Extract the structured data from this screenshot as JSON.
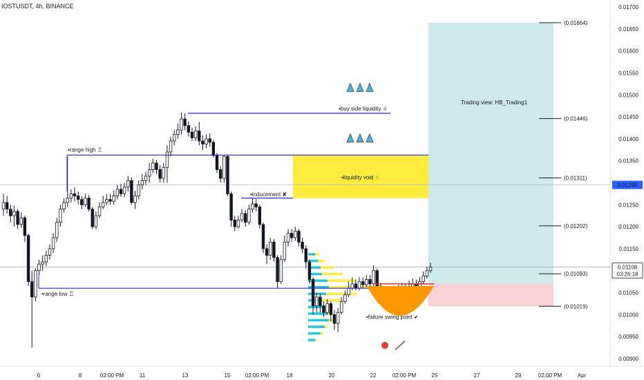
{
  "header": {
    "symbol": "IOSTUSDT, 4h, BINANCE"
  },
  "colors": {
    "up": "#ffffff",
    "down": "#131722",
    "wick": "#131722",
    "range_line": "#2626d9",
    "void": "#ffeb3b",
    "target_zone": "#b2dfdb",
    "stop_zone": "#f8c8cc",
    "cup": "#ff9800",
    "entry_line": "#d32f2f",
    "vp_up": "#26c6da",
    "vp_down": "#ffeb3b",
    "price_tag": "#2962ff"
  },
  "chart_data": {
    "type": "candlestick",
    "ylim": [
      0.009,
      0.017
    ],
    "y_ticks": [
      "0.01700",
      "0.01650",
      "0.01600",
      "0.01550",
      "0.01500",
      "0.01450",
      "0.01400",
      "0.01350",
      "0.01300",
      "0.01250",
      "0.01200",
      "0.01150",
      "0.01100",
      "0.01050",
      "0.01000",
      "0.00950",
      "0.00900"
    ],
    "x_ticks": [
      "6",
      "8",
      "02:00 PM",
      "11",
      "13",
      "15",
      "02:00 PM",
      "18",
      "20",
      "22",
      "02:00 PM",
      "25",
      "27",
      "29",
      "02:00 PM",
      "Apr"
    ],
    "current_price": "0.01108",
    "countdown": "03:26:18",
    "alt_price": "0.01295",
    "levels": [
      {
        "label": "(0.01664)",
        "value": 0.01664
      },
      {
        "label": "(0.01446)",
        "value": 0.01446
      },
      {
        "label": "(0.01311)",
        "value": 0.01311
      },
      {
        "label": "(0.01202)",
        "value": 0.01202
      },
      {
        "label": "(0.01093)",
        "value": 0.01093
      },
      {
        "label": "(0.01019)",
        "value": 0.01019
      }
    ],
    "range_high": 0.01363,
    "range_low": 0.0106,
    "buy_side_liquidity": 0.01458,
    "inducement": 0.01265,
    "void": [
      0.01265,
      0.01363
    ],
    "entry": 0.0107,
    "target": 0.01664,
    "stop": 0.01019,
    "candles": [
      [
        0.0124,
        0.01255,
        0.01275,
        0.01225
      ],
      [
        0.01255,
        0.0124,
        0.0127,
        0.0123
      ],
      [
        0.0124,
        0.01225,
        0.0125,
        0.0121
      ],
      [
        0.01225,
        0.01235,
        0.01248,
        0.012
      ],
      [
        0.01235,
        0.01205,
        0.0124,
        0.01195
      ],
      [
        0.01205,
        0.0122,
        0.01232,
        0.01198
      ],
      [
        0.0122,
        0.0118,
        0.01225,
        0.01165
      ],
      [
        0.0118,
        0.01075,
        0.01185,
        0.01065
      ],
      [
        0.01075,
        0.0104,
        0.011,
        0.00925
      ],
      [
        0.0104,
        0.011,
        0.01105,
        0.0103
      ],
      [
        0.011,
        0.01115,
        0.01125,
        0.0109
      ],
      [
        0.01115,
        0.0112,
        0.01135,
        0.011
      ],
      [
        0.0112,
        0.01135,
        0.01145,
        0.0111
      ],
      [
        0.01135,
        0.0115,
        0.0116,
        0.01125
      ],
      [
        0.0115,
        0.01175,
        0.01185,
        0.0114
      ],
      [
        0.01175,
        0.0121,
        0.0122,
        0.01165
      ],
      [
        0.0121,
        0.0124,
        0.0125,
        0.012
      ],
      [
        0.0124,
        0.01255,
        0.01265,
        0.01232
      ],
      [
        0.01255,
        0.01265,
        0.0136,
        0.01245
      ],
      [
        0.01265,
        0.01275,
        0.01285,
        0.01255
      ],
      [
        0.01275,
        0.0127,
        0.0129,
        0.01258
      ],
      [
        0.0127,
        0.01262,
        0.0128,
        0.0125
      ],
      [
        0.01262,
        0.0125,
        0.0127,
        0.0124
      ],
      [
        0.0125,
        0.01265,
        0.01275,
        0.01245
      ],
      [
        0.01265,
        0.0124,
        0.01272,
        0.01235
      ],
      [
        0.0124,
        0.012,
        0.01245,
        0.01195
      ],
      [
        0.012,
        0.01225,
        0.01235,
        0.01195
      ],
      [
        0.01225,
        0.01245,
        0.01255,
        0.0122
      ],
      [
        0.01245,
        0.01255,
        0.0127,
        0.0124
      ],
      [
        0.01255,
        0.01262,
        0.01275,
        0.01248
      ],
      [
        0.01262,
        0.01258,
        0.01275,
        0.0125
      ],
      [
        0.01258,
        0.0127,
        0.01282,
        0.0125
      ],
      [
        0.0127,
        0.01285,
        0.01295,
        0.01262
      ],
      [
        0.01285,
        0.01275,
        0.01298,
        0.01268
      ],
      [
        0.01275,
        0.0129,
        0.013,
        0.01268
      ],
      [
        0.0129,
        0.01305,
        0.01315,
        0.0128
      ],
      [
        0.01305,
        0.01255,
        0.01312,
        0.0125
      ],
      [
        0.01255,
        0.0127,
        0.01282,
        0.0124
      ],
      [
        0.0127,
        0.01295,
        0.01305,
        0.01262
      ],
      [
        0.01295,
        0.01305,
        0.0132,
        0.01285
      ],
      [
        0.01305,
        0.01315,
        0.01325,
        0.01295
      ],
      [
        0.01315,
        0.0133,
        0.01345,
        0.013
      ],
      [
        0.0133,
        0.01345,
        0.01355,
        0.01322
      ],
      [
        0.01345,
        0.0133,
        0.01352,
        0.0132
      ],
      [
        0.0133,
        0.0131,
        0.0134,
        0.013
      ],
      [
        0.0131,
        0.01335,
        0.01345,
        0.013
      ],
      [
        0.01335,
        0.0137,
        0.01385,
        0.013
      ],
      [
        0.0137,
        0.01395,
        0.01405,
        0.0136
      ],
      [
        0.01395,
        0.0141,
        0.0142,
        0.01385
      ],
      [
        0.0141,
        0.0142,
        0.01435,
        0.014
      ],
      [
        0.0142,
        0.01445,
        0.0146,
        0.0141
      ],
      [
        0.01445,
        0.0143,
        0.01458,
        0.0142
      ],
      [
        0.0143,
        0.01415,
        0.0144,
        0.01405
      ],
      [
        0.01415,
        0.01402,
        0.01425,
        0.01395
      ],
      [
        0.01402,
        0.01418,
        0.01428,
        0.01395
      ],
      [
        0.01418,
        0.01395,
        0.01438,
        0.01385
      ],
      [
        0.01395,
        0.01388,
        0.01408,
        0.01375
      ],
      [
        0.01388,
        0.014,
        0.0141,
        0.01378
      ],
      [
        0.014,
        0.01392,
        0.01412,
        0.01382
      ],
      [
        0.01392,
        0.01362,
        0.01398,
        0.01358
      ],
      [
        0.01362,
        0.0133,
        0.01368,
        0.01322
      ],
      [
        0.0133,
        0.0131,
        0.01338,
        0.013
      ],
      [
        0.0131,
        0.0136,
        0.01362,
        0.013
      ],
      [
        0.0136,
        0.01275,
        0.01362,
        0.0127
      ],
      [
        0.01275,
        0.01215,
        0.0128,
        0.012
      ],
      [
        0.01215,
        0.012,
        0.01225,
        0.0119
      ],
      [
        0.012,
        0.01215,
        0.01225,
        0.01195
      ],
      [
        0.01215,
        0.0123,
        0.0124,
        0.0121
      ],
      [
        0.0123,
        0.0121,
        0.01238,
        0.012
      ],
      [
        0.0121,
        0.0124,
        0.0125,
        0.01205
      ],
      [
        0.0124,
        0.01252,
        0.01265,
        0.01232
      ],
      [
        0.01252,
        0.01245,
        0.01262,
        0.01235
      ],
      [
        0.01245,
        0.01205,
        0.0125,
        0.01195
      ],
      [
        0.01205,
        0.0115,
        0.0121,
        0.0114
      ],
      [
        0.0115,
        0.01135,
        0.0116,
        0.01115
      ],
      [
        0.01135,
        0.01165,
        0.01175,
        0.01125
      ],
      [
        0.01165,
        0.0113,
        0.01172,
        0.0112
      ],
      [
        0.0113,
        0.01075,
        0.01135,
        0.0106
      ],
      [
        0.01075,
        0.01125,
        0.01135,
        0.0107
      ],
      [
        0.01125,
        0.01165,
        0.0118,
        0.0112
      ],
      [
        0.01165,
        0.01185,
        0.01195,
        0.01155
      ],
      [
        0.01185,
        0.01175,
        0.01195,
        0.01165
      ],
      [
        0.01175,
        0.0119,
        0.012,
        0.01168
      ],
      [
        0.0119,
        0.01165,
        0.01195,
        0.01155
      ],
      [
        0.01165,
        0.0115,
        0.01175,
        0.0114
      ],
      [
        0.0115,
        0.0112,
        0.01158,
        0.01105
      ],
      [
        0.0112,
        0.0108,
        0.01125,
        0.0107
      ],
      [
        0.0108,
        0.0102,
        0.01085,
        0.01
      ],
      [
        0.0102,
        0.0104,
        0.0105,
        0.01005
      ],
      [
        0.0104,
        0.0102,
        0.01048,
        0.01005
      ],
      [
        0.0102,
        0.01005,
        0.0103,
        0.00995
      ],
      [
        0.01005,
        0.01025,
        0.01035,
        0.01
      ],
      [
        0.01025,
        0.01,
        0.0103,
        0.00985
      ],
      [
        0.01,
        0.0098,
        0.0101,
        0.00965
      ],
      [
        0.0098,
        0.01005,
        0.01015,
        0.0096
      ],
      [
        0.01005,
        0.0103,
        0.0104,
        0.01
      ],
      [
        0.0103,
        0.01045,
        0.01055,
        0.01025
      ],
      [
        0.01045,
        0.0106,
        0.01075,
        0.0104
      ],
      [
        0.0106,
        0.0107,
        0.01085,
        0.01055
      ],
      [
        0.0107,
        0.0106,
        0.0108,
        0.01055
      ],
      [
        0.0106,
        0.01075,
        0.01085,
        0.01055
      ],
      [
        0.01075,
        0.01068,
        0.01085,
        0.0106
      ],
      [
        0.01068,
        0.0108,
        0.0109,
        0.01062
      ],
      [
        0.0108,
        0.0107,
        0.0109,
        0.01062
      ],
      [
        0.0107,
        0.011,
        0.01112,
        0.01065
      ],
      [
        0.011,
        0.01065,
        0.01105,
        0.0106
      ],
      [
        0.01065,
        0.0105,
        0.01072,
        0.0104
      ],
      [
        0.0105,
        0.01045,
        0.01058,
        0.01035
      ],
      [
        0.01045,
        0.0104,
        0.01052,
        0.0103
      ],
      [
        0.0104,
        0.01035,
        0.01048,
        0.01025
      ],
      [
        0.01035,
        0.0105,
        0.01058,
        0.0103
      ],
      [
        0.0105,
        0.01055,
        0.01068,
        0.01045
      ],
      [
        0.01055,
        0.0106,
        0.01072,
        0.01048
      ],
      [
        0.0106,
        0.01055,
        0.0107,
        0.01048
      ],
      [
        0.01055,
        0.0106,
        0.01078,
        0.0105
      ],
      [
        0.0106,
        0.0107,
        0.01082,
        0.01055
      ],
      [
        0.0107,
        0.01062,
        0.0108,
        0.01055
      ],
      [
        0.01062,
        0.01075,
        0.01085,
        0.01058
      ],
      [
        0.01075,
        0.01088,
        0.01098,
        0.0107
      ],
      [
        0.01088,
        0.011,
        0.0111,
        0.01082
      ],
      [
        0.011,
        0.01108,
        0.01118,
        0.01095
      ]
    ],
    "annotations": [
      {
        "text": "•range high ♖"
      },
      {
        "text": "•range low ♖"
      },
      {
        "text": "•buy side liquidity ♕"
      },
      {
        "text": "•inducement ✘"
      },
      {
        "text": "•liquidity void ♘"
      },
      {
        "text": "•failure swing point ✔"
      },
      {
        "text": "Trading view: HB_Trading1"
      }
    ]
  }
}
